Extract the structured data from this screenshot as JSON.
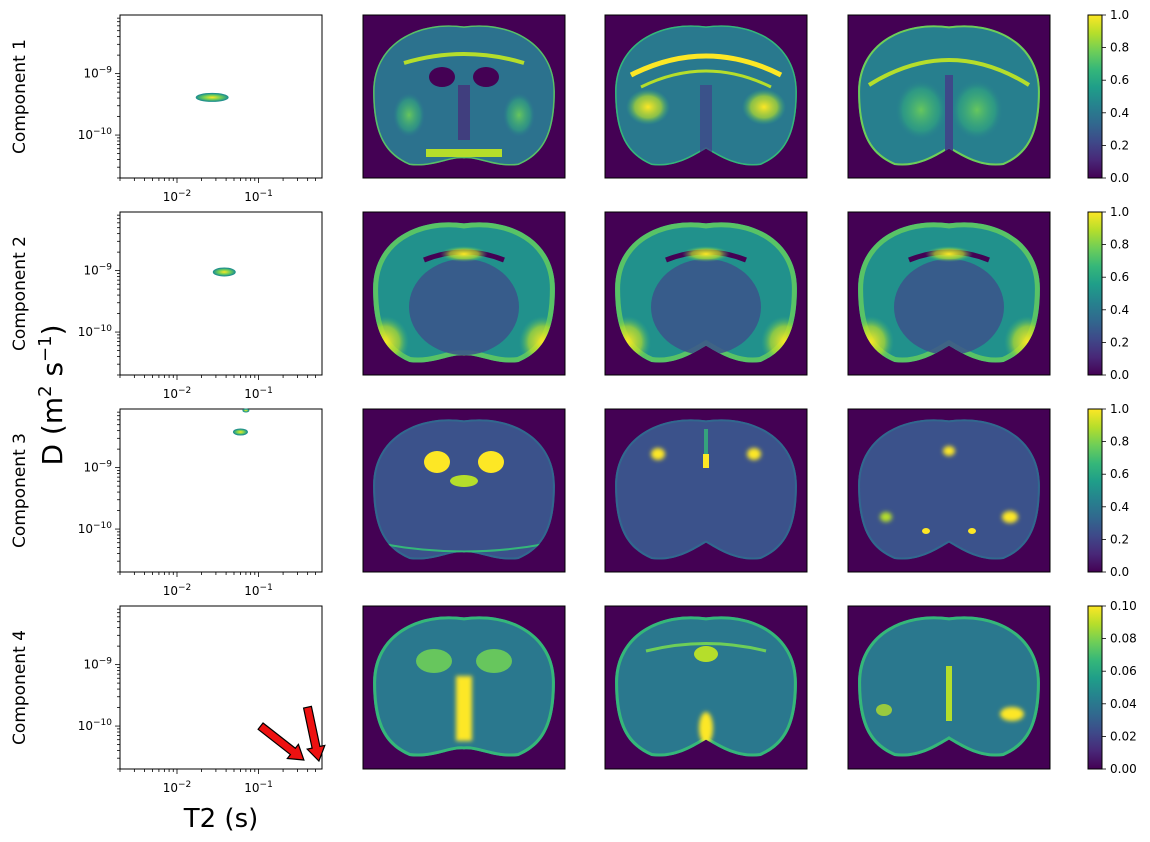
{
  "figure": {
    "ylabel": {
      "base": "D (m",
      "sup1": "2",
      "mid": " s",
      "sup2": "−1",
      "end": ")"
    },
    "xlabel": "T2 (s)"
  },
  "colors": {
    "viridis": [
      "#440154",
      "#482878",
      "#3e4989",
      "#31688e",
      "#26828e",
      "#1f9e89",
      "#35b779",
      "#6ece58",
      "#b5de2b",
      "#fde725"
    ],
    "arrow_fill": "#ee1111",
    "background_map": "#440154"
  },
  "plot_axes": {
    "xscale": "log",
    "yscale": "log",
    "xlim": [
      0.002,
      0.6
    ],
    "ylim": [
      2e-11,
      9e-09
    ],
    "x_ticks": [
      {
        "value": 0.01,
        "base": "10",
        "exp": "−2"
      },
      {
        "value": 0.1,
        "base": "10",
        "exp": "−1"
      }
    ],
    "y_ticks": [
      {
        "value": 1e-09,
        "base": "10",
        "exp": "−9"
      },
      {
        "value": 1e-10,
        "base": "10",
        "exp": "−10"
      }
    ]
  },
  "rows": [
    {
      "label": "Component 1",
      "colorbar": {
        "min": 0,
        "max": 1,
        "ticks": [
          "0.0",
          "0.2",
          "0.4",
          "0.6",
          "0.8",
          "1.0"
        ]
      },
      "peaks": [
        {
          "t2": 0.027,
          "d": 4.1e-10,
          "rx": 16,
          "ry": 4
        }
      ],
      "maps": [
        {
          "slice": "anterior",
          "features": "ventricles"
        },
        {
          "slice": "middle",
          "features": "corpus-callosum"
        },
        {
          "slice": "posterior",
          "features": "hippocampus"
        }
      ]
    },
    {
      "label": "Component 2",
      "colorbar": {
        "min": 0,
        "max": 1,
        "ticks": [
          "0.0",
          "0.2",
          "0.4",
          "0.6",
          "0.8",
          "1.0"
        ]
      },
      "peaks": [
        {
          "t2": 0.038,
          "d": 9.5e-10,
          "rx": 11,
          "ry": 4
        }
      ],
      "maps": [
        {
          "slice": "anterior",
          "features": "cortex"
        },
        {
          "slice": "middle",
          "features": "cortex"
        },
        {
          "slice": "posterior",
          "features": "cortex"
        }
      ]
    },
    {
      "label": "Component 3",
      "colorbar": {
        "min": 0,
        "max": 1,
        "ticks": [
          "0.0",
          "0.2",
          "0.4",
          "0.6",
          "0.8",
          "1.0"
        ]
      },
      "peaks": [
        {
          "t2": 0.06,
          "d": 3.8e-09,
          "rx": 7,
          "ry": 3
        },
        {
          "t2": 0.07,
          "d": 8.5e-09,
          "rx": 3,
          "ry": 1.5
        }
      ],
      "maps": [
        {
          "slice": "anterior",
          "features": "csf"
        },
        {
          "slice": "middle",
          "features": "csf"
        },
        {
          "slice": "posterior",
          "features": "csf"
        }
      ]
    },
    {
      "label": "Component 4",
      "colorbar": {
        "min": 0,
        "max": 0.1,
        "ticks": [
          "0.00",
          "0.02",
          "0.04",
          "0.06",
          "0.08",
          "0.10"
        ]
      },
      "peaks": [],
      "arrows": [
        {
          "t2": 0.36,
          "d": 2.8e-11
        },
        {
          "t2": 0.55,
          "d": 2.7e-11
        }
      ],
      "maps": [
        {
          "slice": "anterior",
          "features": "midline"
        },
        {
          "slice": "middle",
          "features": "midline"
        },
        {
          "slice": "posterior",
          "features": "midline"
        }
      ]
    }
  ]
}
